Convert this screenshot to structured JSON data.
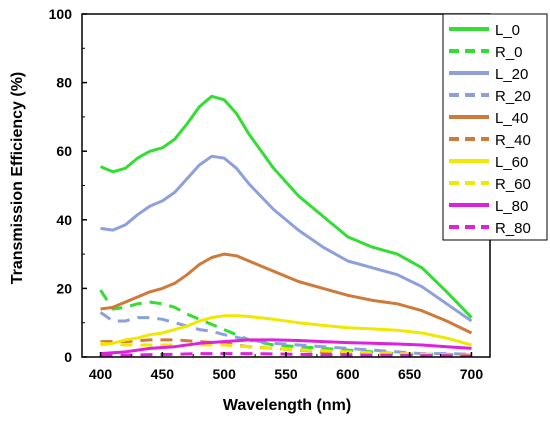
{
  "chart_data": {
    "type": "line",
    "title": "",
    "xlabel": "Wavelength (nm)",
    "ylabel": "Transmission Efficiency (%)",
    "xlim": [
      385,
      715
    ],
    "ylim": [
      0,
      100
    ],
    "xticks": [
      400,
      450,
      500,
      550,
      600,
      650,
      700
    ],
    "yticks": [
      0,
      20,
      40,
      60,
      80,
      100
    ],
    "grid": false,
    "legend_position": "top-right",
    "series": [
      {
        "name": "L_0",
        "color": "#33dd33",
        "dash": "solid",
        "x": [
          400,
          410,
          420,
          430,
          440,
          450,
          460,
          470,
          480,
          490,
          500,
          510,
          520,
          540,
          560,
          580,
          600,
          620,
          640,
          660,
          680,
          700
        ],
        "y": [
          55.5,
          54,
          55,
          58,
          60,
          61,
          63.5,
          68,
          73,
          76,
          75,
          71,
          65,
          55,
          47,
          41,
          35,
          32,
          30,
          26,
          19,
          11.5
        ]
      },
      {
        "name": "R_0",
        "color": "#33dd33",
        "dash": "dashed",
        "x": [
          400,
          410,
          420,
          430,
          440,
          450,
          460,
          470,
          480,
          490,
          500,
          520,
          540,
          560,
          580,
          600,
          620,
          640,
          660,
          680,
          700
        ],
        "y": [
          19.5,
          14,
          14.5,
          15.5,
          16,
          15.5,
          14.5,
          12.5,
          11,
          9.5,
          8,
          5,
          3.5,
          3,
          2.5,
          2,
          1.5,
          1,
          0.8,
          0.8,
          0.5
        ]
      },
      {
        "name": "L_20",
        "color": "#8ea0dc",
        "dash": "solid",
        "x": [
          400,
          410,
          420,
          430,
          440,
          450,
          460,
          470,
          480,
          490,
          500,
          510,
          520,
          540,
          560,
          580,
          600,
          620,
          640,
          660,
          680,
          700
        ],
        "y": [
          37.5,
          37,
          38.5,
          41.5,
          44,
          45.5,
          48,
          52,
          56,
          58.5,
          58,
          55,
          50.5,
          43,
          37,
          32,
          28,
          26,
          24,
          20.5,
          15.5,
          10.5
        ]
      },
      {
        "name": "R_20",
        "color": "#8ea0dc",
        "dash": "dashed",
        "x": [
          400,
          410,
          420,
          430,
          440,
          450,
          460,
          470,
          480,
          490,
          500,
          520,
          540,
          560,
          580,
          600,
          620,
          640,
          660,
          680,
          700
        ],
        "y": [
          13,
          10.5,
          10.5,
          11.5,
          11.5,
          11,
          10,
          9,
          8,
          7.5,
          6.5,
          5,
          4,
          3.5,
          3,
          2.5,
          2,
          1.5,
          1,
          1,
          0.8
        ]
      },
      {
        "name": "L_40",
        "color": "#d07a3a",
        "dash": "solid",
        "x": [
          400,
          410,
          420,
          430,
          440,
          450,
          460,
          470,
          480,
          490,
          500,
          510,
          520,
          540,
          560,
          580,
          600,
          620,
          640,
          660,
          680,
          700
        ],
        "y": [
          14,
          14.5,
          16,
          17.5,
          19,
          20,
          21.5,
          24,
          27,
          29,
          30,
          29.5,
          28,
          25,
          22,
          20,
          18,
          16.5,
          15.5,
          13.5,
          10.5,
          7
        ]
      },
      {
        "name": "R_40",
        "color": "#d07a3a",
        "dash": "dashed",
        "x": [
          400,
          420,
          440,
          460,
          480,
          500,
          520,
          540,
          560,
          580,
          600,
          620,
          640,
          660,
          680,
          700
        ],
        "y": [
          4.5,
          4.5,
          5,
          5,
          4.5,
          4,
          3,
          2.5,
          2,
          1.5,
          1.2,
          1,
          0.8,
          0.7,
          0.6,
          0.5
        ]
      },
      {
        "name": "L_60",
        "color": "#f0e800",
        "dash": "solid",
        "x": [
          400,
          410,
          420,
          430,
          440,
          450,
          460,
          470,
          480,
          490,
          500,
          510,
          520,
          540,
          560,
          580,
          600,
          620,
          640,
          660,
          680,
          700
        ],
        "y": [
          3.5,
          4,
          5,
          5.5,
          6.5,
          7,
          8,
          9,
          10.5,
          11.5,
          12,
          12,
          11.8,
          11,
          10,
          9.2,
          8.5,
          8.2,
          7.8,
          7,
          5.5,
          3.5
        ]
      },
      {
        "name": "R_60",
        "color": "#f0e800",
        "dash": "dashed",
        "x": [
          400,
          420,
          440,
          460,
          480,
          500,
          520,
          540,
          560,
          580,
          600,
          620,
          640,
          660,
          680,
          700
        ],
        "y": [
          4,
          3.5,
          3.5,
          3.5,
          3.5,
          3.5,
          3,
          2.5,
          2,
          1.8,
          1.5,
          1.2,
          1,
          0.8,
          0.6,
          0.5
        ]
      },
      {
        "name": "L_80",
        "color": "#dd22dd",
        "dash": "solid",
        "x": [
          400,
          420,
          440,
          460,
          480,
          500,
          520,
          540,
          560,
          580,
          600,
          620,
          640,
          660,
          680,
          700
        ],
        "y": [
          1,
          1.5,
          2.5,
          3,
          4,
          4.5,
          5,
          5,
          4.8,
          4.5,
          4.2,
          4,
          3.8,
          3.5,
          3,
          2.5
        ]
      },
      {
        "name": "R_80",
        "color": "#dd22dd",
        "dash": "dashed",
        "x": [
          400,
          420,
          440,
          460,
          480,
          500,
          520,
          540,
          560,
          580,
          600,
          620,
          640,
          660,
          680,
          700
        ],
        "y": [
          0.5,
          0.5,
          0.7,
          0.8,
          1,
          1,
          1,
          0.9,
          0.8,
          0.7,
          0.6,
          0.5,
          0.5,
          0.4,
          0.4,
          0.3
        ]
      }
    ]
  }
}
